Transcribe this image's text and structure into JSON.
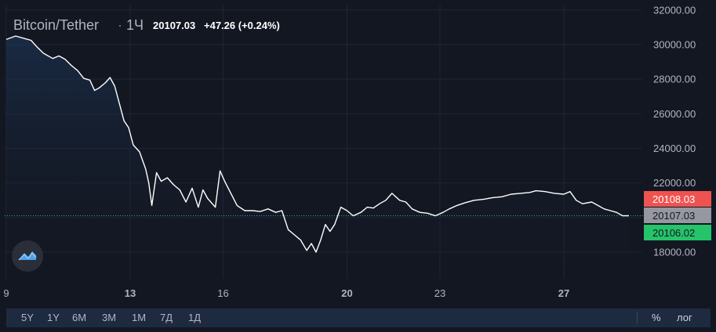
{
  "legend": {
    "symbol": "Bitcoin/Tether",
    "dot": "·",
    "interval": "1Ч",
    "last": "20107.03",
    "change": "+47.26 (+0.24%)"
  },
  "price_labels": {
    "high": "20108.03",
    "last": "20107.03",
    "low": "20106.02"
  },
  "colors": {
    "background": "#131722",
    "line": "#ffffff",
    "high_label": "#ef5350",
    "last_label": "#9598a1",
    "low_label": "#26c46a",
    "grid": "#1f2535"
  },
  "icons": {
    "logo": "tradingview-logo-icon"
  },
  "range_buttons": [
    "5Y",
    "1Y",
    "6M",
    "3M",
    "1M",
    "7Д",
    "1Д"
  ],
  "toolbar_right": {
    "percent": "%",
    "log": "лог"
  },
  "chart_data": {
    "type": "area",
    "x_tick_labels": [
      "9",
      "13",
      "16",
      "20",
      "23",
      "27"
    ],
    "y_tick_labels": [
      "18000.00",
      "20000.00",
      "22000.00",
      "24000.00",
      "26000.00",
      "28000.00",
      "30000.00",
      "32000.00"
    ],
    "ylim": [
      16600,
      32000
    ],
    "x_range": [
      9.0,
      29.1
    ],
    "grid": true,
    "series": [
      {
        "values": [
          [
            9.0,
            30300
          ],
          [
            9.3,
            30500
          ],
          [
            9.6,
            30350
          ],
          [
            9.8,
            30250
          ],
          [
            10.0,
            29850
          ],
          [
            10.2,
            29500
          ],
          [
            10.5,
            29200
          ],
          [
            10.7,
            29350
          ],
          [
            10.9,
            29150
          ],
          [
            11.1,
            28800
          ],
          [
            11.3,
            28500
          ],
          [
            11.5,
            28050
          ],
          [
            11.7,
            27950
          ],
          [
            11.85,
            27350
          ],
          [
            12.0,
            27500
          ],
          [
            12.2,
            27800
          ],
          [
            12.35,
            28100
          ],
          [
            12.5,
            27600
          ],
          [
            12.65,
            26600
          ],
          [
            12.8,
            25600
          ],
          [
            12.95,
            25200
          ],
          [
            13.1,
            24200
          ],
          [
            13.3,
            23800
          ],
          [
            13.5,
            22800
          ],
          [
            13.6,
            22000
          ],
          [
            13.7,
            20700
          ],
          [
            13.85,
            22600
          ],
          [
            14.0,
            22100
          ],
          [
            14.2,
            22300
          ],
          [
            14.4,
            21900
          ],
          [
            14.6,
            21600
          ],
          [
            14.8,
            20900
          ],
          [
            15.0,
            21700
          ],
          [
            15.2,
            20600
          ],
          [
            15.35,
            21600
          ],
          [
            15.5,
            21100
          ],
          [
            15.75,
            20600
          ],
          [
            15.9,
            22700
          ],
          [
            16.05,
            22100
          ],
          [
            16.25,
            21400
          ],
          [
            16.45,
            20700
          ],
          [
            16.7,
            20400
          ],
          [
            16.95,
            20400
          ],
          [
            17.2,
            20350
          ],
          [
            17.45,
            20500
          ],
          [
            17.7,
            20300
          ],
          [
            17.9,
            20400
          ],
          [
            18.1,
            19300
          ],
          [
            18.3,
            19000
          ],
          [
            18.5,
            18700
          ],
          [
            18.7,
            18100
          ],
          [
            18.85,
            18500
          ],
          [
            19.0,
            18000
          ],
          [
            19.15,
            18700
          ],
          [
            19.3,
            19600
          ],
          [
            19.45,
            19200
          ],
          [
            19.6,
            19600
          ],
          [
            19.8,
            20600
          ],
          [
            20.0,
            20400
          ],
          [
            20.2,
            20100
          ],
          [
            20.45,
            20300
          ],
          [
            20.65,
            20600
          ],
          [
            20.85,
            20550
          ],
          [
            21.05,
            20800
          ],
          [
            21.25,
            21000
          ],
          [
            21.45,
            21400
          ],
          [
            21.7,
            21000
          ],
          [
            21.9,
            20900
          ],
          [
            22.1,
            20500
          ],
          [
            22.35,
            20300
          ],
          [
            22.6,
            20250
          ],
          [
            22.85,
            20100
          ],
          [
            23.1,
            20300
          ],
          [
            23.3,
            20500
          ],
          [
            23.55,
            20700
          ],
          [
            23.8,
            20850
          ],
          [
            24.1,
            21000
          ],
          [
            24.4,
            21050
          ],
          [
            24.7,
            21150
          ],
          [
            25.0,
            21200
          ],
          [
            25.3,
            21350
          ],
          [
            25.6,
            21400
          ],
          [
            25.9,
            21450
          ],
          [
            26.1,
            21550
          ],
          [
            26.4,
            21500
          ],
          [
            26.7,
            21400
          ],
          [
            27.0,
            21350
          ],
          [
            27.2,
            21500
          ],
          [
            27.4,
            21000
          ],
          [
            27.6,
            20800
          ],
          [
            27.9,
            20900
          ],
          [
            28.1,
            20700
          ],
          [
            28.3,
            20500
          ],
          [
            28.5,
            20400
          ],
          [
            28.7,
            20300
          ],
          [
            28.9,
            20100
          ],
          [
            29.1,
            20107
          ]
        ]
      }
    ],
    "reference_line": 20107.03
  }
}
